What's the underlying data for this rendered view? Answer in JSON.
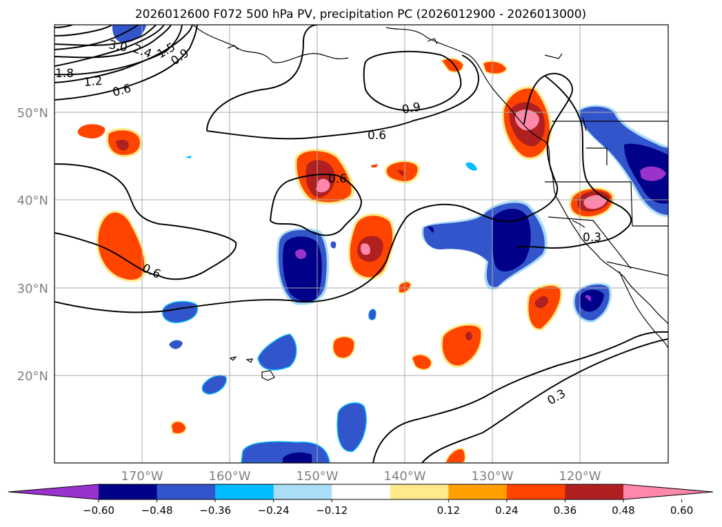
{
  "title": "2026012600 F072 500 hPa PV, precipitation PC (2026012900 - 2026013000)",
  "map": {
    "lon_range": [
      -180,
      -110
    ],
    "lat_range": [
      10,
      60
    ],
    "lat_labels": [
      "50°N",
      "40°N",
      "30°N",
      "20°N"
    ],
    "lon_labels": [
      "170°W",
      "160°W",
      "150°W",
      "140°W",
      "130°W",
      "120°W"
    ],
    "gridlines": true,
    "pv_contour_labels": [
      "3.0",
      "2.4",
      "1.8",
      "1.5",
      "1.2",
      "0.9",
      "0.6",
      "0.9",
      "0.6",
      "0.6",
      "0.6",
      "0.3",
      "0.3"
    ]
  },
  "colorbar": {
    "tick_labels": [
      "−0.60",
      "−0.48",
      "−0.36",
      "−0.24",
      "−0.12",
      "0.12",
      "0.24",
      "0.36",
      "0.48",
      "0.60"
    ],
    "colors": [
      "#9933CC",
      "#000088",
      "#3355CC",
      "#00BBFF",
      "#AADDF7",
      "#FFFFFF",
      "#FFE98A",
      "#FFA000",
      "#FF4400",
      "#B02020",
      "#FF88AA"
    ],
    "extend": "both"
  },
  "colors": {
    "contour": "#000000",
    "coast": "#000000",
    "grid": "#AAAAAA",
    "label_grey": "#808080"
  }
}
